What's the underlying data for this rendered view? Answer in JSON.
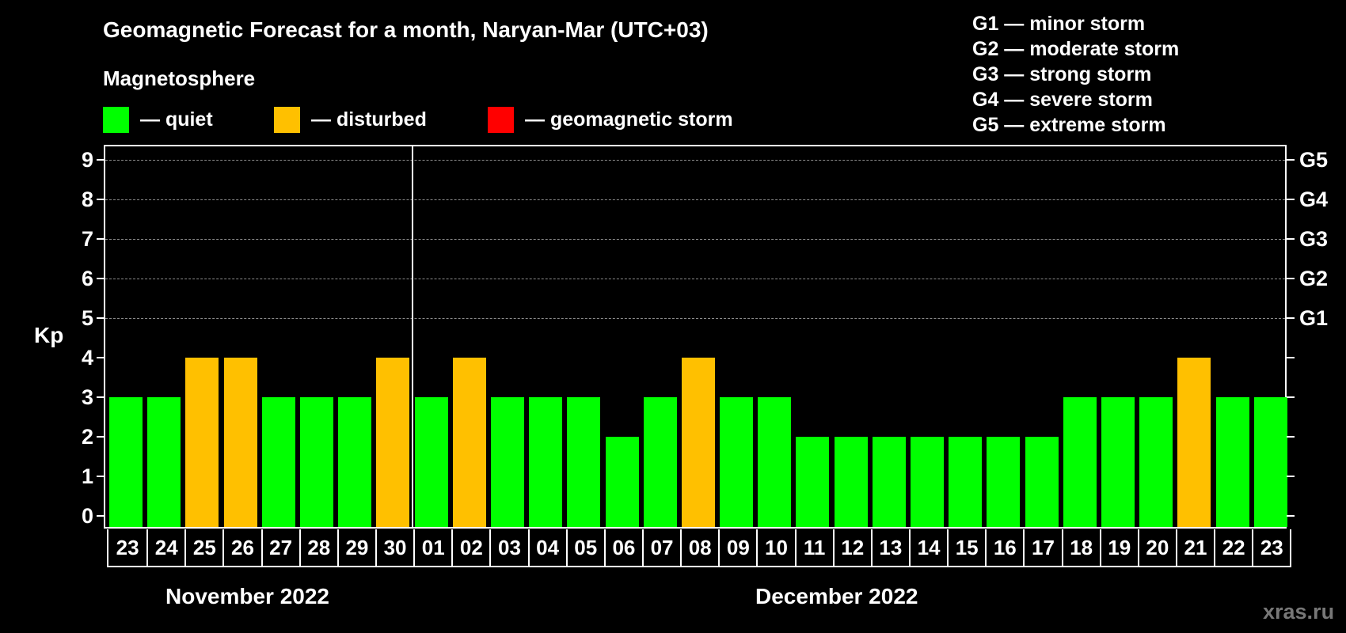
{
  "header": {
    "title": "Geomagnetic Forecast for a month, Naryan-Mar (UTC+03)",
    "subtitle": "Magnetosphere"
  },
  "legend": [
    {
      "label": "— quiet",
      "color": "#00FF00"
    },
    {
      "label": "— disturbed",
      "color": "#FFC000"
    },
    {
      "label": "— geomagnetic storm",
      "color": "#FF0000"
    }
  ],
  "g_legend": [
    "G1 — minor storm",
    "G2 — moderate storm",
    "G3 — strong storm",
    "G4 — severe storm",
    "G5 — extreme storm"
  ],
  "axis": {
    "ylabel": "Kp",
    "yticks": [
      "0",
      "1",
      "2",
      "3",
      "4",
      "5",
      "6",
      "7",
      "8",
      "9"
    ],
    "right_labels": {
      "5": "G1",
      "6": "G2",
      "7": "G3",
      "8": "G4",
      "9": "G5"
    }
  },
  "months": [
    {
      "label": "November 2022"
    },
    {
      "label": "December 2022"
    }
  ],
  "watermark": "xras.ru",
  "chart_data": {
    "type": "bar",
    "title": "Geomagnetic Forecast for a month, Naryan-Mar (UTC+03)",
    "subtitle": "Magnetosphere",
    "xlabel": "",
    "ylabel": "Kp",
    "ylim": [
      0,
      9
    ],
    "grid": "dashed horizontal at Kp 5-9",
    "legend_position": "top",
    "categories": [
      "23",
      "24",
      "25",
      "26",
      "27",
      "28",
      "29",
      "30",
      "01",
      "02",
      "03",
      "04",
      "05",
      "06",
      "07",
      "08",
      "09",
      "10",
      "11",
      "12",
      "13",
      "14",
      "15",
      "16",
      "17",
      "18",
      "19",
      "20",
      "21",
      "22",
      "23"
    ],
    "month_groups": [
      {
        "label": "November 2022",
        "days": [
          "23",
          "24",
          "25",
          "26",
          "27",
          "28",
          "29",
          "30"
        ]
      },
      {
        "label": "December 2022",
        "days": [
          "01",
          "02",
          "03",
          "04",
          "05",
          "06",
          "07",
          "08",
          "09",
          "10",
          "11",
          "12",
          "13",
          "14",
          "15",
          "16",
          "17",
          "18",
          "19",
          "20",
          "21",
          "22",
          "23"
        ]
      }
    ],
    "values": [
      3,
      3,
      4,
      4,
      3,
      3,
      3,
      4,
      3,
      4,
      3,
      3,
      3,
      2,
      3,
      4,
      3,
      3,
      2,
      2,
      2,
      2,
      2,
      2,
      2,
      3,
      3,
      3,
      4,
      3,
      3
    ],
    "status": [
      "quiet",
      "quiet",
      "disturbed",
      "disturbed",
      "quiet",
      "quiet",
      "quiet",
      "disturbed",
      "quiet",
      "disturbed",
      "quiet",
      "quiet",
      "quiet",
      "quiet",
      "quiet",
      "disturbed",
      "quiet",
      "quiet",
      "quiet",
      "quiet",
      "quiet",
      "quiet",
      "quiet",
      "quiet",
      "quiet",
      "quiet",
      "quiet",
      "quiet",
      "disturbed",
      "quiet",
      "quiet"
    ],
    "colors": {
      "quiet": "#00FF00",
      "disturbed": "#FFC000",
      "storm": "#FF0000"
    },
    "right_axis": {
      "5": "G1",
      "6": "G2",
      "7": "G3",
      "8": "G4",
      "9": "G5"
    }
  }
}
